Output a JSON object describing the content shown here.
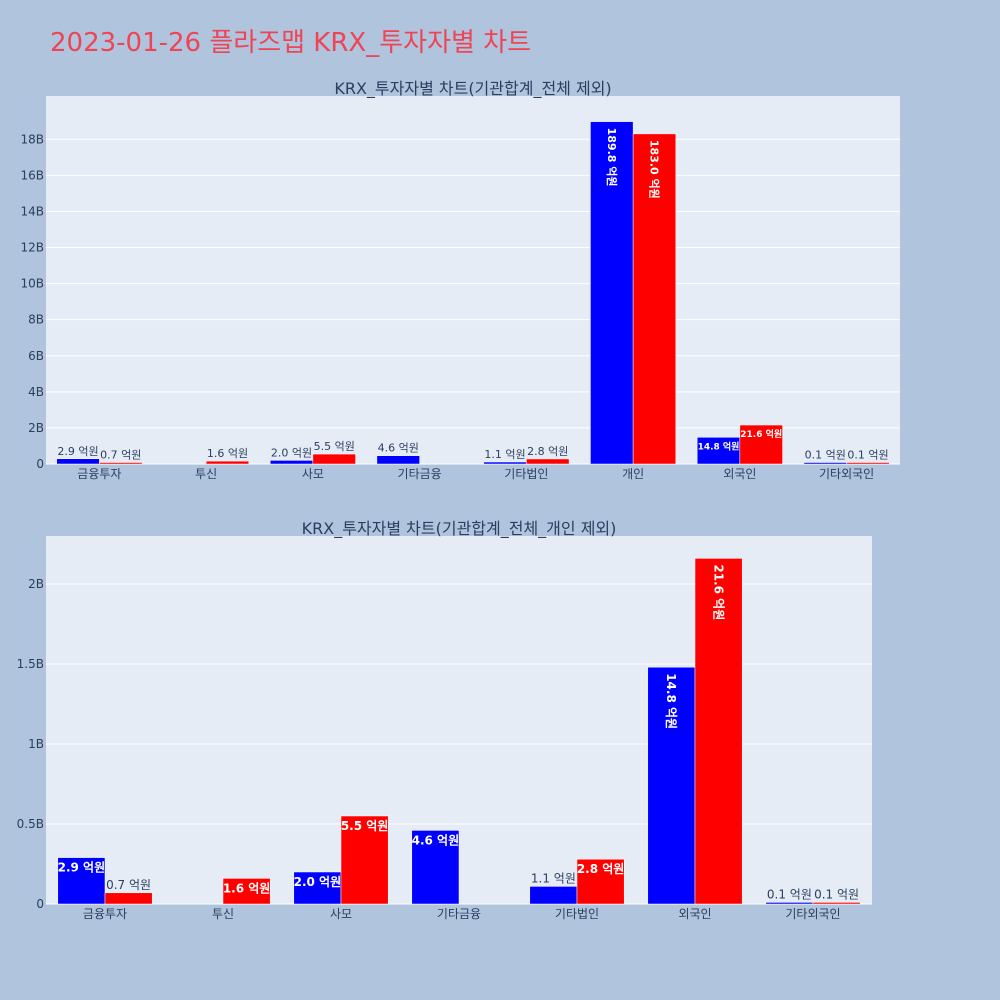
{
  "page_title": "2023-01-26 플라즈맵 KRX_투자자별 차트",
  "colors": {
    "background": "#b0c4de",
    "plot_bg": "#e5ecf6",
    "buy": "#0000ff",
    "sell": "#ff0000",
    "title": "#ef4455"
  },
  "chart_data": [
    {
      "type": "bar",
      "title": "KRX_투자자별 차트(기관합계_전체 제외)",
      "categories": [
        "금융투자",
        "투신",
        "사모",
        "기타금융",
        "기타법인",
        "개인",
        "외국인",
        "기타외국인"
      ],
      "series": [
        {
          "values": [
            0.29,
            null,
            0.2,
            0.46,
            0.11,
            18.98,
            1.48,
            0.01
          ],
          "labels": [
            "2.9 억원",
            "",
            "2.0 억원",
            "4.6 억원",
            "1.1 억원",
            "189.8 억원",
            "14.8 억원",
            "0.1 억원"
          ]
        },
        {
          "values": [
            0.07,
            0.16,
            0.55,
            null,
            0.28,
            18.3,
            2.16,
            0.01
          ],
          "labels": [
            "0.7 억원",
            "1.6 억원",
            "5.5 억원",
            "",
            "2.8 억원",
            "183.0 억원",
            "21.6 억원",
            "0.1 억원"
          ]
        }
      ],
      "ylim": [
        0,
        20.4
      ],
      "yticks": [
        0,
        2,
        4,
        6,
        8,
        10,
        12,
        14,
        16,
        18
      ],
      "ytick_labels": [
        "0",
        "2B",
        "4B",
        "6B",
        "8B",
        "10B",
        "12B",
        "14B",
        "16B",
        "18B"
      ],
      "grid": true
    },
    {
      "type": "bar",
      "title": "KRX_투자자별 차트(기관합계_전체_개인 제외)",
      "categories": [
        "금융투자",
        "투신",
        "사모",
        "기타금융",
        "기타법인",
        "외국인",
        "기타외국인"
      ],
      "series": [
        {
          "values": [
            0.29,
            null,
            0.2,
            0.46,
            0.11,
            1.48,
            0.01
          ],
          "labels": [
            "2.9 억원",
            "",
            "2.0 억원",
            "4.6 억원",
            "1.1 억원",
            "14.8 억원",
            "0.1 억원"
          ]
        },
        {
          "values": [
            0.07,
            0.16,
            0.55,
            null,
            0.28,
            2.16,
            0.01
          ],
          "labels": [
            "0.7 억원",
            "1.6 억원",
            "5.5 억원",
            "",
            "2.8 억원",
            "21.6 억원",
            "0.1 억원"
          ]
        }
      ],
      "ylim": [
        0,
        2.3
      ],
      "yticks": [
        0,
        0.5,
        1,
        1.5,
        2
      ],
      "ytick_labels": [
        "0",
        "0.5B",
        "1B",
        "1.5B",
        "2B"
      ],
      "grid": true
    }
  ]
}
